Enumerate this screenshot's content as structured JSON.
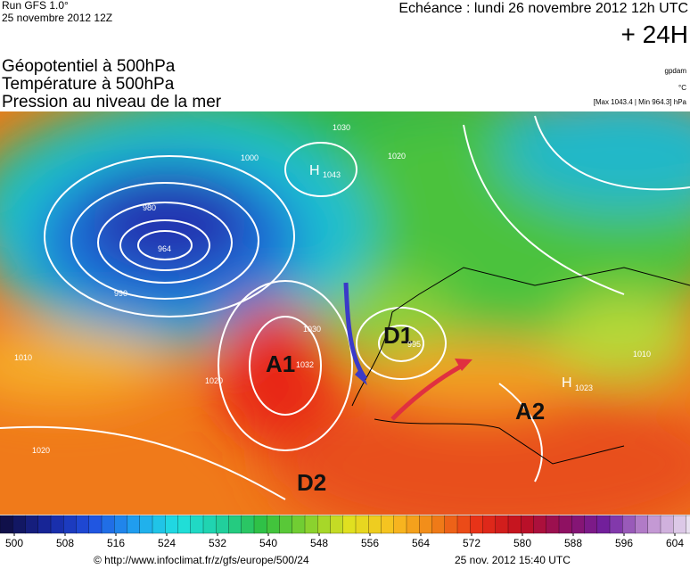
{
  "header": {
    "run": "Run GFS 1.0°",
    "run_date": "25 novembre 2012 12Z",
    "echeance": "Echéance : lundi 26 novembre 2012 12h UTC",
    "offset": "+ 24H"
  },
  "titles": [
    "Géopotentiel à 500hPa",
    "Température à 500hPa",
    "Pression au niveau de la mer"
  ],
  "units": [
    "gpdam",
    "°C",
    "[Max 1043.4 | Min 964.3] hPa"
  ],
  "map_labels": {
    "systems": [
      "A1",
      "D1",
      "D2",
      "A2"
    ],
    "highs": [
      "H",
      "H"
    ],
    "pressures": [
      "1043",
      "964",
      "1032",
      "995",
      "1023",
      "980",
      "1000",
      "990",
      "1010",
      "1020",
      "1030",
      "1020",
      "1010",
      "1020",
      "1030"
    ]
  },
  "scale": {
    "ticks": [
      500,
      508,
      516,
      524,
      532,
      540,
      548,
      556,
      564,
      572,
      580,
      588,
      596,
      604
    ]
  },
  "footer": {
    "url": "© http://www.infoclimat.fr/z/gfs/europe/500/24",
    "timestamp": "25 nov. 2012 15:40 UTC"
  }
}
